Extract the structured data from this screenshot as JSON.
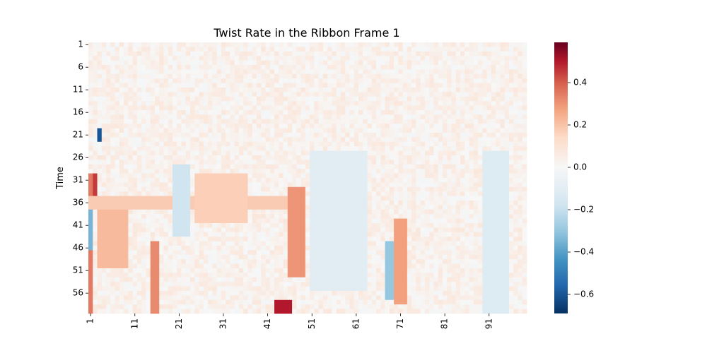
{
  "chart_data": {
    "type": "heatmap",
    "title": "Twist Rate in the Ribbon Frame 1",
    "xlabel": "",
    "ylabel": "Time",
    "x_tick_labels": [
      "1",
      "11",
      "21",
      "31",
      "41",
      "51",
      "61",
      "71",
      "81",
      "91"
    ],
    "y_tick_labels": [
      "1",
      "6",
      "11",
      "16",
      "21",
      "26",
      "31",
      "36",
      "41",
      "46",
      "51",
      "56"
    ],
    "n_cols": 99,
    "n_rows": 60,
    "colorbar": {
      "colormap": "RdBu_r",
      "vmin": -0.69,
      "vmax": 0.59,
      "ticks": [
        "0.4",
        "0.2",
        "0.0",
        "−0.2",
        "−0.4",
        "−0.6"
      ],
      "tick_values": [
        0.4,
        0.2,
        0.0,
        -0.2,
        -0.4,
        -0.6
      ]
    },
    "background_value": 0.03,
    "features": [
      {
        "desc": "left edge strip",
        "col_from": 1,
        "col_to": 1,
        "row_from": 30,
        "row_to": 60,
        "value": 0.35
      },
      {
        "desc": "left edge dark red",
        "col_from": 2,
        "col_to": 2,
        "row_from": 30,
        "row_to": 34,
        "value": 0.45
      },
      {
        "desc": "left edge blue band",
        "col_from": 1,
        "col_to": 1,
        "row_from": 35,
        "row_to": 46,
        "value": -0.35
      },
      {
        "desc": "dark blue spot",
        "col_from": 3,
        "col_to": 3,
        "row_from": 20,
        "row_to": 22,
        "value": -0.6
      },
      {
        "desc": "early orange block",
        "col_from": 3,
        "col_to": 9,
        "row_from": 35,
        "row_to": 50,
        "value": 0.22
      },
      {
        "desc": "horizontal band",
        "col_from": 1,
        "col_to": 45,
        "row_from": 35,
        "row_to": 37,
        "value": 0.18
      },
      {
        "desc": "red vertical line",
        "col_from": 15,
        "col_to": 16,
        "row_from": 45,
        "row_to": 60,
        "value": 0.32
      },
      {
        "desc": "blue streak",
        "col_from": 20,
        "col_to": 23,
        "row_from": 28,
        "row_to": 43,
        "value": -0.18
      },
      {
        "desc": "orange band",
        "col_from": 25,
        "col_to": 36,
        "row_from": 30,
        "row_to": 40,
        "value": 0.17
      },
      {
        "desc": "red streak",
        "col_from": 46,
        "col_to": 49,
        "row_from": 33,
        "row_to": 52,
        "value": 0.3
      },
      {
        "desc": "dark red bottom",
        "col_from": 43,
        "col_to": 46,
        "row_from": 58,
        "row_to": 60,
        "value": 0.5
      },
      {
        "desc": "blue region",
        "col_from": 51,
        "col_to": 63,
        "row_from": 25,
        "row_to": 55,
        "value": -0.1
      },
      {
        "desc": "blue streak 2",
        "col_from": 68,
        "col_to": 69,
        "row_from": 45,
        "row_to": 57,
        "value": -0.3
      },
      {
        "desc": "red streak 2",
        "col_from": 70,
        "col_to": 72,
        "row_from": 40,
        "row_to": 58,
        "value": 0.28
      },
      {
        "desc": "right blue band",
        "col_from": 90,
        "col_to": 95,
        "row_from": 25,
        "row_to": 60,
        "value": -0.12
      }
    ]
  }
}
